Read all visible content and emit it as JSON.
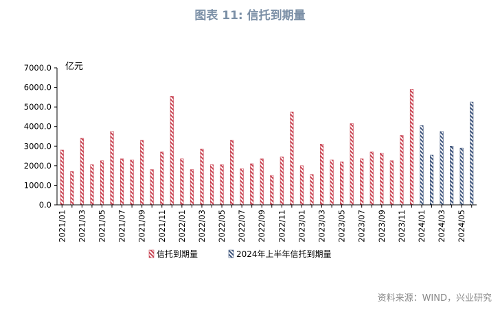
{
  "title": "图表 11: 信托到期量",
  "source": "资料来源：WIND，兴业研究",
  "chart_data": {
    "type": "bar",
    "unit_label": "亿元",
    "ylim": [
      0,
      7000
    ],
    "yticks": [
      "0.0",
      "1000.0",
      "2000.0",
      "3000.0",
      "4000.0",
      "5000.0",
      "6000.0",
      "7000.0"
    ],
    "grid": false,
    "legend_position": "bottom",
    "colors": {
      "series1": "#c8404f",
      "series2": "#3f557c"
    },
    "categories": [
      "2021/01",
      "2021/02",
      "2021/03",
      "2021/04",
      "2021/05",
      "2021/06",
      "2021/07",
      "2021/08",
      "2021/09",
      "2021/10",
      "2021/11",
      "2021/12",
      "2022/01",
      "2022/02",
      "2022/03",
      "2022/04",
      "2022/05",
      "2022/06",
      "2022/07",
      "2022/08",
      "2022/09",
      "2022/10",
      "2022/11",
      "2022/12",
      "2023/01",
      "2023/02",
      "2023/03",
      "2023/04",
      "2023/05",
      "2023/06",
      "2023/07",
      "2023/08",
      "2023/09",
      "2023/10",
      "2023/11",
      "2023/12",
      "2024/01",
      "2024/02",
      "2024/03",
      "2024/04",
      "2024/05",
      "2024/06"
    ],
    "tick_labels": [
      "2021/01",
      "2021/03",
      "2021/05",
      "2021/07",
      "2021/09",
      "2021/11",
      "2022/01",
      "2022/03",
      "2022/05",
      "2022/07",
      "2022/09",
      "2022/11",
      "2023/01",
      "2023/03",
      "2023/05",
      "2023/07",
      "2023/09",
      "2023/11",
      "2024/01",
      "2024/03",
      "2024/05"
    ],
    "series": [
      {
        "name": "信托到期量",
        "values": [
          2800,
          1700,
          3400,
          2050,
          2250,
          3750,
          2350,
          2300,
          3300,
          1800,
          2700,
          5550,
          2350,
          1800,
          2850,
          2050,
          2050,
          3300,
          1850,
          2100,
          2350,
          1500,
          2450,
          4750,
          2000,
          1550,
          3100,
          2300,
          2200,
          4150,
          2350,
          2700,
          2650,
          2250,
          3550,
          5900,
          null,
          null,
          null,
          null,
          null,
          null
        ]
      },
      {
        "name": "2024年上半年信托到期量",
        "values": [
          null,
          null,
          null,
          null,
          null,
          null,
          null,
          null,
          null,
          null,
          null,
          null,
          null,
          null,
          null,
          null,
          null,
          null,
          null,
          null,
          null,
          null,
          null,
          null,
          null,
          null,
          null,
          null,
          null,
          null,
          null,
          null,
          null,
          null,
          null,
          null,
          4050,
          2550,
          3750,
          3000,
          2900,
          5250
        ]
      }
    ]
  }
}
